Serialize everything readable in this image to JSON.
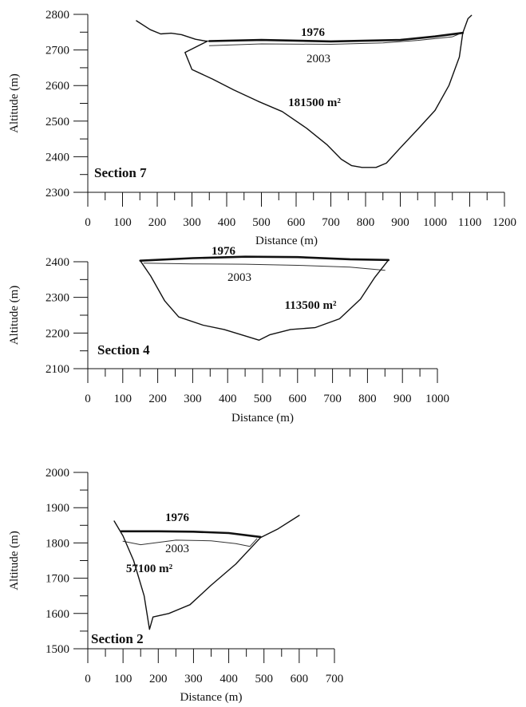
{
  "chart_data": [
    {
      "type": "line",
      "section_label": "Section 7",
      "xlabel": "Distance (m)",
      "ylabel": "Altitude (m)",
      "xlim": [
        0,
        1200
      ],
      "ylim": [
        2300,
        2800
      ],
      "xticks": [
        0,
        100,
        200,
        300,
        400,
        500,
        600,
        700,
        800,
        900,
        1000,
        1100,
        1200
      ],
      "yticks": [
        2300,
        2400,
        2500,
        2600,
        2700,
        2800
      ],
      "area_label": "181500 m²",
      "series": [
        {
          "name": "1976",
          "values": [
            [
              350,
              2725
            ],
            [
              500,
              2728
            ],
            [
              700,
              2724
            ],
            [
              900,
              2728
            ],
            [
              1000,
              2738
            ],
            [
              1080,
              2748
            ]
          ]
        },
        {
          "name": "2003",
          "values": [
            [
              350,
              2712
            ],
            [
              500,
              2717
            ],
            [
              700,
              2716
            ],
            [
              850,
              2720
            ],
            [
              950,
              2727
            ],
            [
              1050,
              2737
            ],
            [
              1070,
              2745
            ]
          ]
        },
        {
          "name": "bed",
          "values": [
            [
              140,
              2782
            ],
            [
              180,
              2757
            ],
            [
              210,
              2745
            ],
            [
              240,
              2747
            ],
            [
              270,
              2743
            ],
            [
              310,
              2730
            ],
            [
              340,
              2725
            ],
            [
              345,
              2725
            ],
            [
              280,
              2693
            ],
            [
              300,
              2645
            ],
            [
              360,
              2618
            ],
            [
              420,
              2588
            ],
            [
              490,
              2556
            ],
            [
              560,
              2527
            ],
            [
              630,
              2480
            ],
            [
              690,
              2433
            ],
            [
              730,
              2393
            ],
            [
              760,
              2375
            ],
            [
              790,
              2370
            ],
            [
              830,
              2370
            ],
            [
              860,
              2382
            ],
            [
              900,
              2425
            ],
            [
              950,
              2477
            ],
            [
              1000,
              2530
            ],
            [
              1040,
              2600
            ],
            [
              1070,
              2680
            ],
            [
              1080,
              2748
            ],
            [
              1095,
              2788
            ],
            [
              1105,
              2797
            ]
          ]
        }
      ]
    },
    {
      "type": "line",
      "section_label": "Section 4",
      "xlabel": "Distance (m)",
      "ylabel": "Altitude (m)",
      "xlim": [
        0,
        1000
      ],
      "ylim": [
        2100,
        2400
      ],
      "xticks": [
        0,
        100,
        200,
        300,
        400,
        500,
        600,
        700,
        800,
        900,
        1000
      ],
      "yticks": [
        2100,
        2200,
        2300,
        2400
      ],
      "area_label": "113500 m²",
      "series": [
        {
          "name": "1976",
          "values": [
            [
              150,
              2403
            ],
            [
              300,
              2410
            ],
            [
              450,
              2414
            ],
            [
              600,
              2413
            ],
            [
              750,
              2407
            ],
            [
              860,
              2405
            ]
          ]
        },
        {
          "name": "2003",
          "values": [
            [
              160,
              2396
            ],
            [
              300,
              2394
            ],
            [
              450,
              2393
            ],
            [
              600,
              2390
            ],
            [
              750,
              2385
            ],
            [
              850,
              2376
            ]
          ]
        },
        {
          "name": "bed",
          "values": [
            [
              150,
              2403
            ],
            [
              180,
              2360
            ],
            [
              220,
              2290
            ],
            [
              260,
              2245
            ],
            [
              330,
              2222
            ],
            [
              390,
              2210
            ],
            [
              450,
              2192
            ],
            [
              490,
              2180
            ],
            [
              520,
              2195
            ],
            [
              580,
              2210
            ],
            [
              650,
              2215
            ],
            [
              720,
              2240
            ],
            [
              780,
              2295
            ],
            [
              820,
              2355
            ],
            [
              860,
              2405
            ]
          ]
        }
      ]
    },
    {
      "type": "line",
      "section_label": "Section 2",
      "xlabel": "Distance (m)",
      "ylabel": "Altitude (m)",
      "xlim": [
        0,
        700
      ],
      "ylim": [
        1500,
        2000
      ],
      "xticks": [
        0,
        100,
        200,
        300,
        400,
        500,
        600,
        700
      ],
      "yticks": [
        1500,
        1600,
        1700,
        1800,
        1900,
        2000
      ],
      "area_label": "57100 m²",
      "series": [
        {
          "name": "1976",
          "values": [
            [
              95,
              1833
            ],
            [
              200,
              1833
            ],
            [
              300,
              1832
            ],
            [
              400,
              1828
            ],
            [
              490,
              1817
            ]
          ]
        },
        {
          "name": "2003",
          "values": [
            [
              100,
              1805
            ],
            [
              150,
              1795
            ],
            [
              250,
              1808
            ],
            [
              350,
              1806
            ],
            [
              420,
              1798
            ],
            [
              460,
              1790
            ],
            [
              480,
              1812
            ]
          ]
        },
        {
          "name": "bed",
          "values": [
            [
              75,
              1862
            ],
            [
              100,
              1820
            ],
            [
              130,
              1750
            ],
            [
              160,
              1650
            ],
            [
              175,
              1555
            ],
            [
              185,
              1590
            ],
            [
              230,
              1600
            ],
            [
              290,
              1625
            ],
            [
              350,
              1680
            ],
            [
              420,
              1740
            ],
            [
              490,
              1815
            ],
            [
              540,
              1840
            ],
            [
              600,
              1878
            ]
          ]
        }
      ]
    }
  ]
}
